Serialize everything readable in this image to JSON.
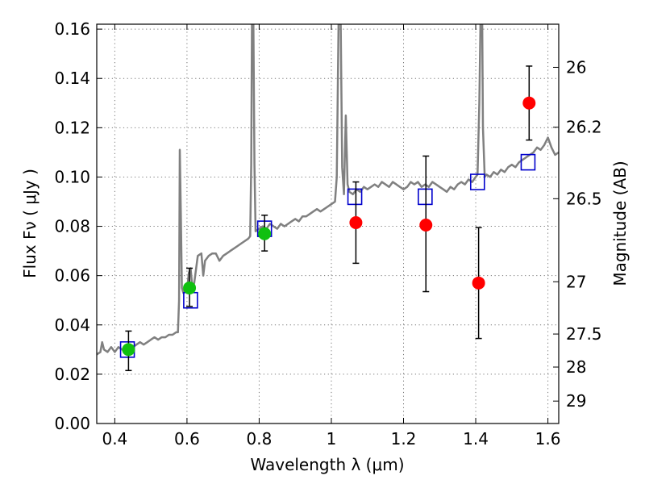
{
  "chart_data": {
    "type": "scatter",
    "xlabel": "Wavelength  λ (μm)",
    "ylabel": "Flux  Fν  ( μJy )",
    "y2label": "Magnitude (AB)",
    "xlim": [
      0.35,
      1.63
    ],
    "ylim": [
      0.0,
      0.162
    ],
    "grid": true,
    "x_ticks": [
      0.4,
      0.6,
      0.8,
      1.0,
      1.2,
      1.4,
      1.6
    ],
    "x_tick_labels": [
      "0.4",
      "0.6",
      "0.8",
      "1",
      "1.2",
      "1.4",
      "1.6"
    ],
    "y_ticks": [
      0.0,
      0.02,
      0.04,
      0.06,
      0.08,
      0.1,
      0.12,
      0.14,
      0.16
    ],
    "y_tick_labels": [
      "0.00",
      "0.02",
      "0.04",
      "0.06",
      "0.08",
      "0.10",
      "0.12",
      "0.14",
      "0.16"
    ],
    "y2_ticks": [
      {
        "flux": 0.1445,
        "label": "26"
      },
      {
        "flux": 0.1202,
        "label": "26.2"
      },
      {
        "flux": 0.0912,
        "label": "26.5"
      },
      {
        "flux": 0.0575,
        "label": "27"
      },
      {
        "flux": 0.0363,
        "label": "27.5"
      },
      {
        "flux": 0.0229,
        "label": "28"
      },
      {
        "flux": 0.0091,
        "label": "29"
      }
    ],
    "series": [
      {
        "kind": "line",
        "color": "#808080",
        "points": [
          [
            0.35,
            0.028
          ],
          [
            0.36,
            0.029
          ],
          [
            0.365,
            0.033
          ],
          [
            0.37,
            0.03
          ],
          [
            0.38,
            0.029
          ],
          [
            0.39,
            0.031
          ],
          [
            0.4,
            0.029
          ],
          [
            0.41,
            0.031
          ],
          [
            0.42,
            0.03
          ],
          [
            0.43,
            0.031
          ],
          [
            0.44,
            0.032
          ],
          [
            0.45,
            0.031
          ],
          [
            0.46,
            0.032
          ],
          [
            0.47,
            0.033
          ],
          [
            0.48,
            0.032
          ],
          [
            0.49,
            0.033
          ],
          [
            0.5,
            0.034
          ],
          [
            0.51,
            0.035
          ],
          [
            0.52,
            0.034
          ],
          [
            0.53,
            0.035
          ],
          [
            0.54,
            0.035
          ],
          [
            0.55,
            0.036
          ],
          [
            0.56,
            0.036
          ],
          [
            0.57,
            0.037
          ],
          [
            0.575,
            0.037
          ],
          [
            0.578,
            0.05
          ],
          [
            0.58,
            0.111
          ],
          [
            0.583,
            0.085
          ],
          [
            0.586,
            0.055
          ],
          [
            0.59,
            0.053
          ],
          [
            0.6,
            0.054
          ],
          [
            0.605,
            0.061
          ],
          [
            0.61,
            0.063
          ],
          [
            0.615,
            0.055
          ],
          [
            0.62,
            0.057
          ],
          [
            0.63,
            0.068
          ],
          [
            0.64,
            0.069
          ],
          [
            0.645,
            0.06
          ],
          [
            0.65,
            0.066
          ],
          [
            0.66,
            0.068
          ],
          [
            0.67,
            0.069
          ],
          [
            0.68,
            0.069
          ],
          [
            0.69,
            0.066
          ],
          [
            0.7,
            0.068
          ],
          [
            0.71,
            0.069
          ],
          [
            0.72,
            0.07
          ],
          [
            0.73,
            0.071
          ],
          [
            0.74,
            0.072
          ],
          [
            0.75,
            0.073
          ],
          [
            0.76,
            0.074
          ],
          [
            0.77,
            0.075
          ],
          [
            0.775,
            0.076
          ],
          [
            0.778,
            0.105
          ],
          [
            0.78,
            0.162
          ],
          [
            0.784,
            0.162
          ],
          [
            0.787,
            0.105
          ],
          [
            0.79,
            0.078
          ],
          [
            0.8,
            0.079
          ],
          [
            0.81,
            0.08
          ],
          [
            0.82,
            0.079
          ],
          [
            0.83,
            0.081
          ],
          [
            0.84,
            0.08
          ],
          [
            0.85,
            0.079
          ],
          [
            0.86,
            0.081
          ],
          [
            0.87,
            0.08
          ],
          [
            0.88,
            0.081
          ],
          [
            0.89,
            0.082
          ],
          [
            0.9,
            0.083
          ],
          [
            0.91,
            0.082
          ],
          [
            0.92,
            0.084
          ],
          [
            0.93,
            0.084
          ],
          [
            0.94,
            0.085
          ],
          [
            0.95,
            0.086
          ],
          [
            0.96,
            0.087
          ],
          [
            0.97,
            0.086
          ],
          [
            0.98,
            0.087
          ],
          [
            0.99,
            0.088
          ],
          [
            1.0,
            0.089
          ],
          [
            1.01,
            0.09
          ],
          [
            1.015,
            0.1
          ],
          [
            1.02,
            0.162
          ],
          [
            1.026,
            0.162
          ],
          [
            1.03,
            0.104
          ],
          [
            1.035,
            0.093
          ],
          [
            1.04,
            0.125
          ],
          [
            1.045,
            0.097
          ],
          [
            1.05,
            0.094
          ],
          [
            1.06,
            0.093
          ],
          [
            1.07,
            0.095
          ],
          [
            1.08,
            0.094
          ],
          [
            1.09,
            0.096
          ],
          [
            1.1,
            0.095
          ],
          [
            1.11,
            0.096
          ],
          [
            1.12,
            0.097
          ],
          [
            1.13,
            0.096
          ],
          [
            1.14,
            0.098
          ],
          [
            1.15,
            0.097
          ],
          [
            1.16,
            0.096
          ],
          [
            1.17,
            0.098
          ],
          [
            1.18,
            0.097
          ],
          [
            1.19,
            0.096
          ],
          [
            1.2,
            0.095
          ],
          [
            1.21,
            0.096
          ],
          [
            1.22,
            0.098
          ],
          [
            1.23,
            0.097
          ],
          [
            1.24,
            0.098
          ],
          [
            1.25,
            0.096
          ],
          [
            1.26,
            0.097
          ],
          [
            1.27,
            0.096
          ],
          [
            1.28,
            0.098
          ],
          [
            1.29,
            0.097
          ],
          [
            1.3,
            0.096
          ],
          [
            1.31,
            0.095
          ],
          [
            1.32,
            0.094
          ],
          [
            1.33,
            0.096
          ],
          [
            1.34,
            0.095
          ],
          [
            1.35,
            0.097
          ],
          [
            1.36,
            0.098
          ],
          [
            1.37,
            0.097
          ],
          [
            1.38,
            0.099
          ],
          [
            1.39,
            0.098
          ],
          [
            1.4,
            0.1
          ],
          [
            1.405,
            0.101
          ],
          [
            1.41,
            0.13
          ],
          [
            1.413,
            0.162
          ],
          [
            1.418,
            0.162
          ],
          [
            1.42,
            0.12
          ],
          [
            1.425,
            0.1
          ],
          [
            1.43,
            0.101
          ],
          [
            1.44,
            0.1
          ],
          [
            1.45,
            0.102
          ],
          [
            1.46,
            0.101
          ],
          [
            1.47,
            0.103
          ],
          [
            1.48,
            0.102
          ],
          [
            1.49,
            0.104
          ],
          [
            1.5,
            0.105
          ],
          [
            1.51,
            0.104
          ],
          [
            1.52,
            0.106
          ],
          [
            1.53,
            0.107
          ],
          [
            1.54,
            0.108
          ],
          [
            1.55,
            0.109
          ],
          [
            1.56,
            0.11
          ],
          [
            1.57,
            0.112
          ],
          [
            1.58,
            0.111
          ],
          [
            1.59,
            0.113
          ],
          [
            1.6,
            0.116
          ],
          [
            1.61,
            0.112
          ],
          [
            1.62,
            0.109
          ],
          [
            1.63,
            0.11
          ]
        ]
      },
      {
        "kind": "boxes",
        "color": "#0000cc",
        "points": [
          [
            0.435,
            0.03
          ],
          [
            0.61,
            0.05
          ],
          [
            0.815,
            0.079
          ],
          [
            1.065,
            0.092
          ],
          [
            1.26,
            0.092
          ],
          [
            1.405,
            0.098
          ],
          [
            1.545,
            0.106
          ]
        ]
      },
      {
        "kind": "errorbar",
        "color": "#000000",
        "points": [
          {
            "x": 0.438,
            "y": 0.03,
            "ylo": 0.0215,
            "yhi": 0.0375
          },
          {
            "x": 0.607,
            "y": 0.055,
            "ylo": 0.0475,
            "yhi": 0.063
          },
          {
            "x": 0.815,
            "y": 0.077,
            "ylo": 0.07,
            "yhi": 0.0845
          },
          {
            "x": 1.068,
            "y": 0.0815,
            "ylo": 0.065,
            "yhi": 0.098
          },
          {
            "x": 1.262,
            "y": 0.0805,
            "ylo": 0.0535,
            "yhi": 0.1085
          },
          {
            "x": 1.408,
            "y": 0.057,
            "ylo": 0.0345,
            "yhi": 0.0795
          },
          {
            "x": 1.548,
            "y": 0.13,
            "ylo": 0.115,
            "yhi": 0.145
          }
        ]
      },
      {
        "kind": "dots",
        "color": "#10c010",
        "points": [
          [
            0.438,
            0.03
          ],
          [
            0.607,
            0.055
          ],
          [
            0.815,
            0.077
          ]
        ]
      },
      {
        "kind": "dots",
        "color": "#ff0000",
        "points": [
          [
            1.068,
            0.0815
          ],
          [
            1.262,
            0.0805
          ],
          [
            1.408,
            0.057
          ],
          [
            1.548,
            0.13
          ]
        ]
      }
    ]
  }
}
